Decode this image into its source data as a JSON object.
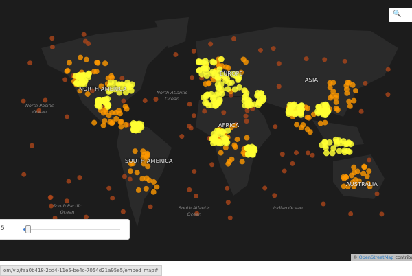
{
  "map": {
    "continents": [
      "NORTH AMERICA",
      "EUROPE",
      "ASIA",
      "AFRICA",
      "SOUTH AMERICA",
      "AUSTRALIA"
    ],
    "oceans": [
      "North Atlantic\nOcean",
      "North Pacific\nOcean",
      "South Pacific\nOcean",
      "South Atlantic\nOcean",
      "Indian Ocean"
    ],
    "colors": {
      "background": "#1c1c1c",
      "land": "#2a2a2a",
      "hot": "#ffff33",
      "warm": "#ff9900",
      "cool": "#b4481a"
    }
  },
  "search": {
    "icon": "search-icon",
    "glyph": "🔍"
  },
  "slider": {
    "value": "5",
    "fraction": 0.04
  },
  "attribution": {
    "prefix": "© ",
    "link": "OpenStreetMap",
    "suffix": " contributors"
  },
  "status_bar": {
    "url": "om/viz/faa0b418-2cd4-11e5-be4c-7054d21a95e5/embed_map#"
  }
}
